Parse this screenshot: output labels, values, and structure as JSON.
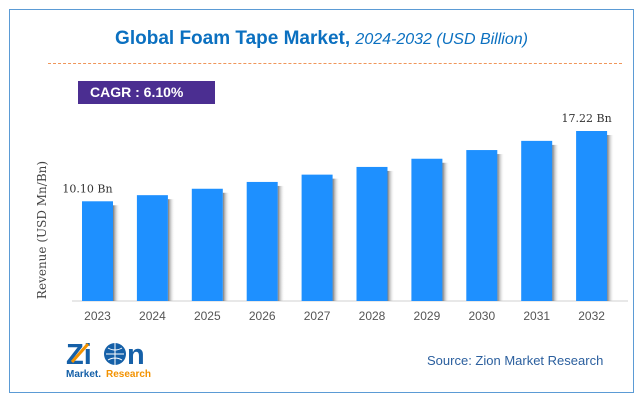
{
  "chart_data": {
    "type": "bar",
    "title": "Global Foam Tape Market,",
    "subtitle": "2024-2032 (USD Billion)",
    "ylabel": "Revenue (USD Mn/Bn)",
    "categories": [
      "2023",
      "2024",
      "2025",
      "2026",
      "2027",
      "2028",
      "2029",
      "2030",
      "2031",
      "2032"
    ],
    "values": [
      10.1,
      10.72,
      11.37,
      12.06,
      12.8,
      13.58,
      14.41,
      15.29,
      16.22,
      17.22
    ],
    "data_labels": {
      "0": "10.10 Bn",
      "9": "17.22 Bn"
    },
    "ylim": [
      0,
      17.22
    ],
    "grid": false,
    "bar_color": "#1e90ff"
  },
  "cagr_label": "CAGR : 6.10%",
  "source": "Source: Zion Market Research",
  "logo": {
    "top": "Zion",
    "bottom_left": "Market.",
    "bottom_right": "Research"
  }
}
